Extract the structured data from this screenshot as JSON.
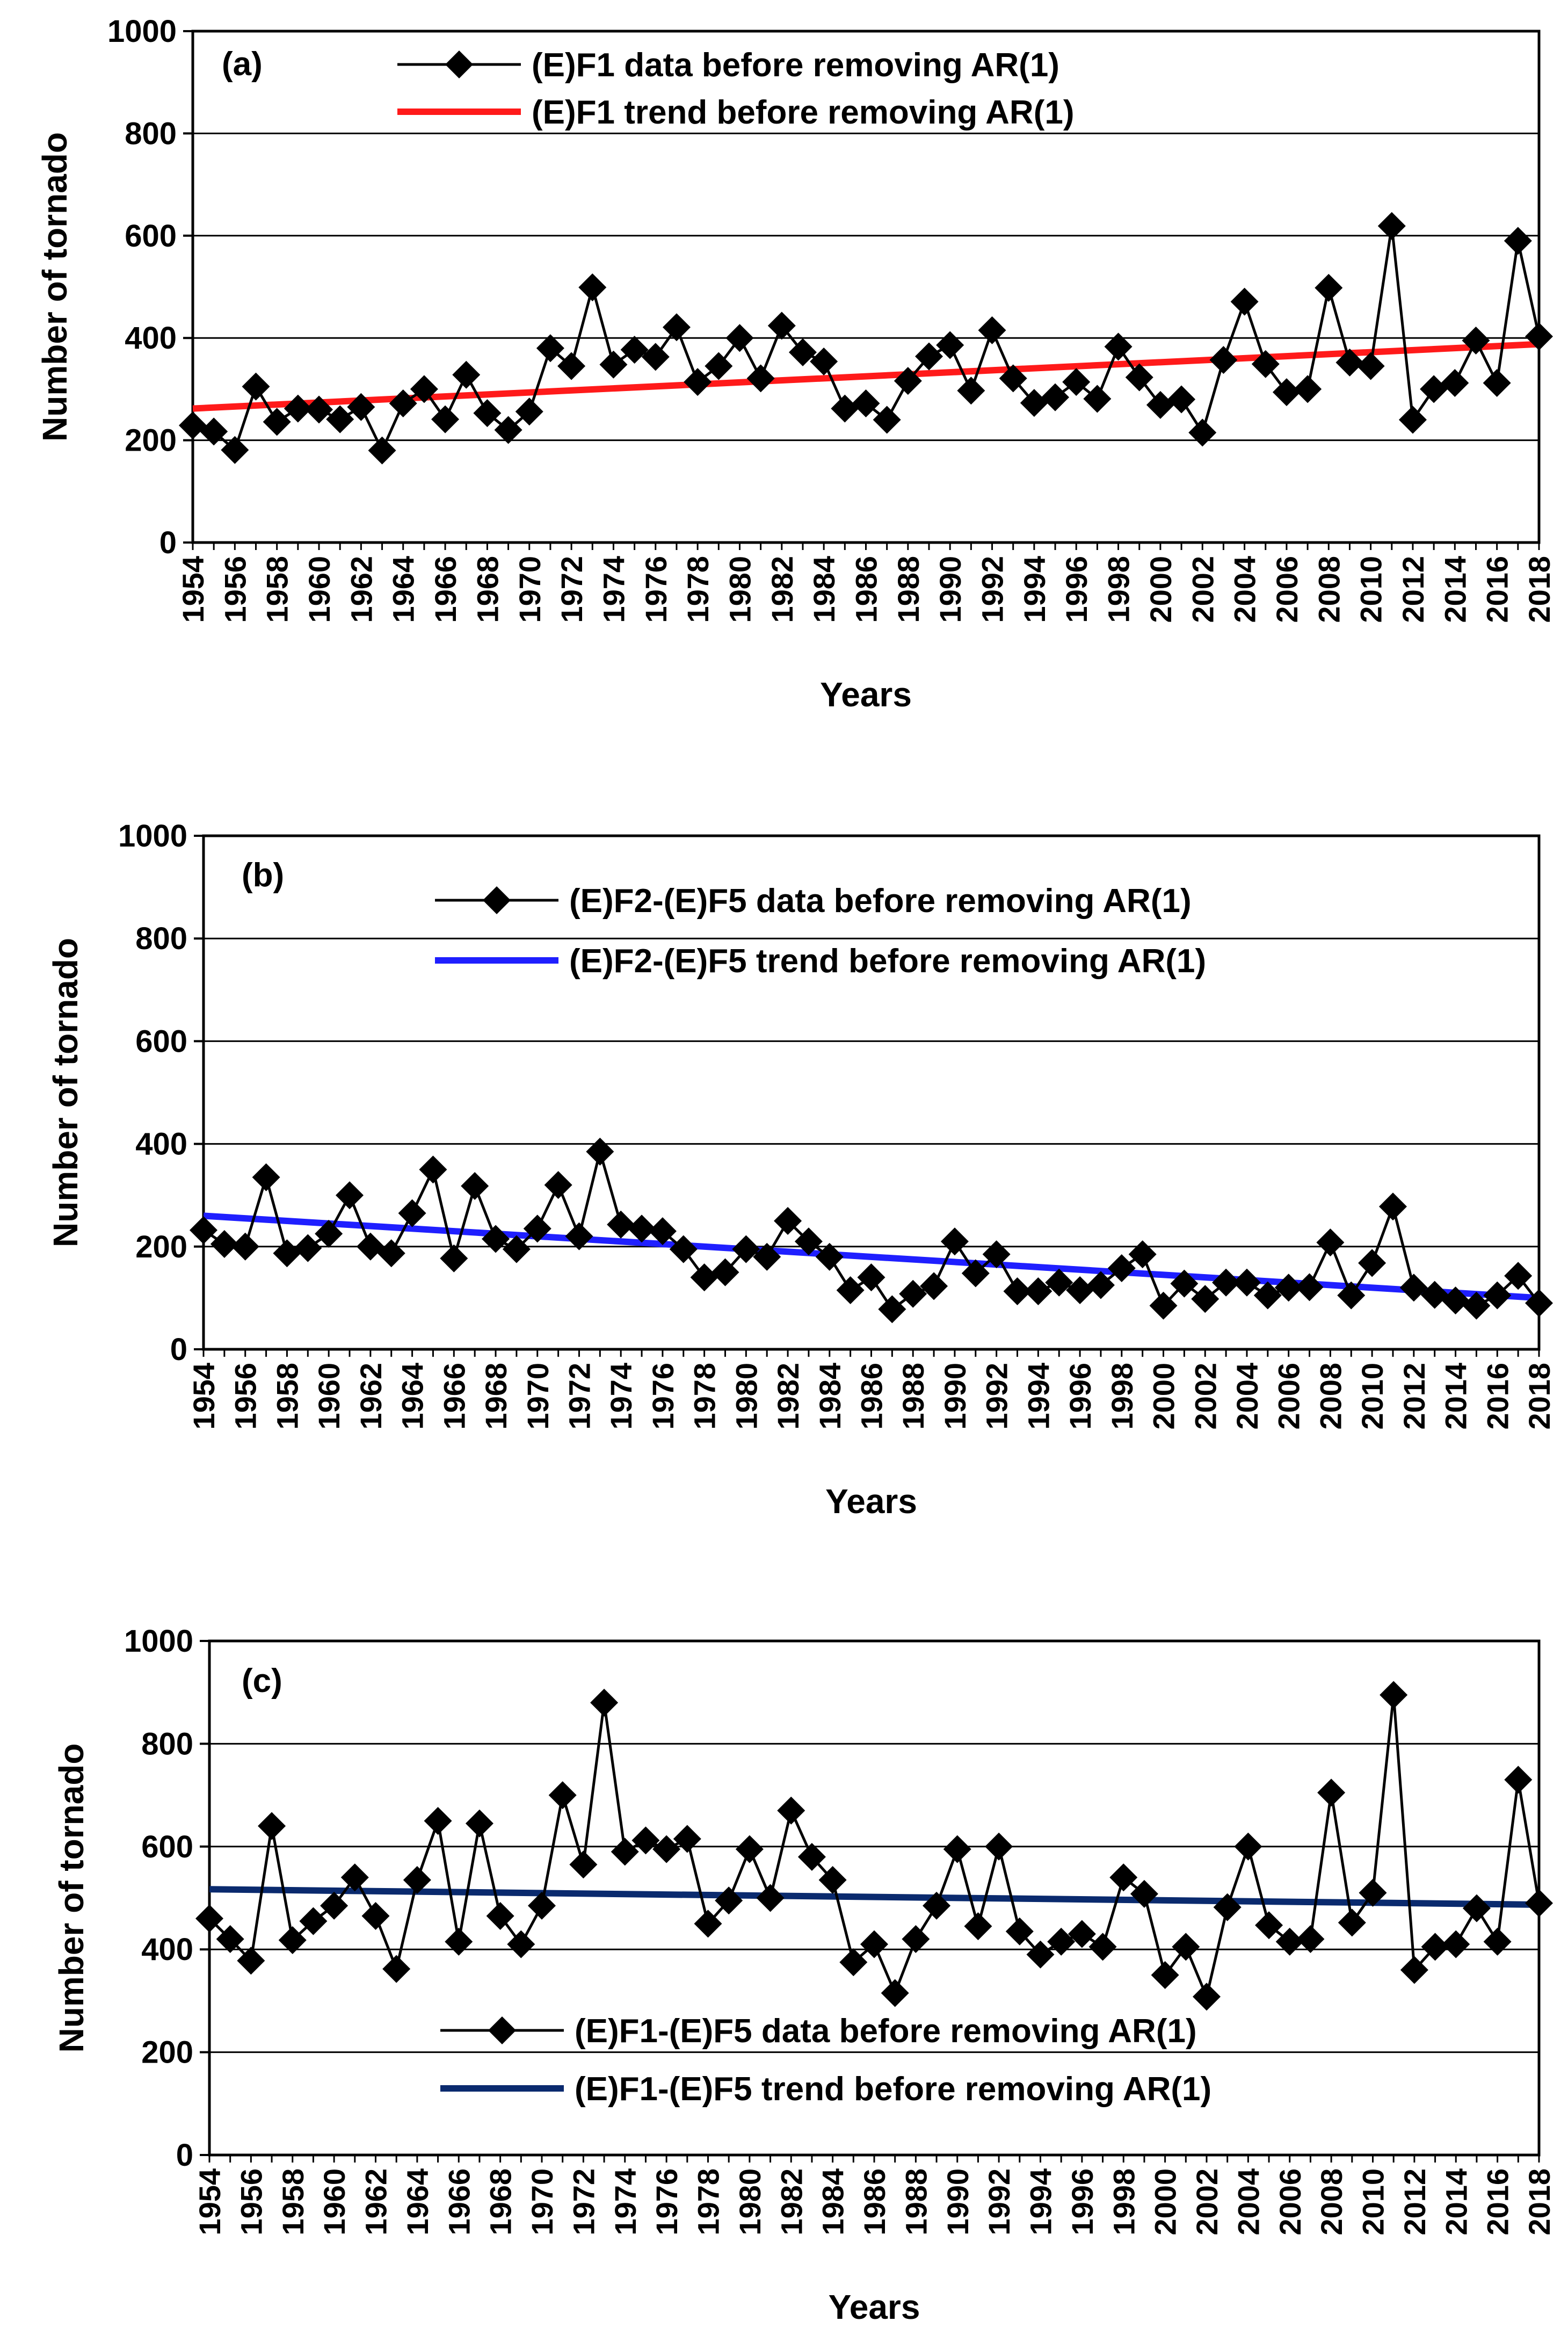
{
  "chart_data": [
    {
      "type": "line",
      "panel_label": "(a)",
      "xlabel": "Years",
      "ylabel": "Number of tornado",
      "ylim": [
        0,
        1000
      ],
      "yticks": [
        0,
        200,
        400,
        600,
        800,
        1000
      ],
      "x_tick_labels": [
        "1954",
        "1956",
        "1958",
        "1960",
        "1962",
        "1964",
        "1966",
        "1968",
        "1970",
        "1972",
        "1974",
        "1976",
        "1978",
        "1980",
        "1982",
        "1984",
        "1986",
        "1988",
        "1990",
        "1992",
        "1994",
        "1996",
        "1998",
        "2000",
        "2002",
        "2004",
        "2006",
        "2008",
        "2010",
        "2012",
        "2014",
        "2016",
        "2018"
      ],
      "grid": "horizontal",
      "legend_position": "top-center",
      "x_start": 1954,
      "x_end": 2018,
      "data_series": {
        "name": "(E)F1 data before removing AR(1)",
        "color": "#000000",
        "values": [
          229,
          217,
          181,
          305,
          236,
          262,
          260,
          241,
          265,
          180,
          272,
          300,
          241,
          328,
          253,
          220,
          256,
          380,
          345,
          499,
          348,
          377,
          363,
          421,
          314,
          345,
          400,
          321,
          424,
          372,
          354,
          262,
          272,
          240,
          316,
          364,
          386,
          297,
          415,
          321,
          273,
          284,
          314,
          281,
          383,
          323,
          269,
          280,
          215,
          357,
          471,
          349,
          294,
          300,
          498,
          352,
          345,
          619,
          240,
          300,
          312,
          395,
          312,
          590,
          403
        ]
      },
      "trend_series": {
        "name": "(E)F1 trend before removing AR(1)",
        "color": "#ff1a1a",
        "start": 262,
        "end": 388
      }
    },
    {
      "type": "line",
      "panel_label": "(b)",
      "xlabel": "Years",
      "ylabel": "Number of tornado",
      "ylim": [
        0,
        1000
      ],
      "yticks": [
        0,
        200,
        400,
        600,
        800,
        1000
      ],
      "x_tick_labels": [
        "1954",
        "1956",
        "1958",
        "1960",
        "1962",
        "1964",
        "1966",
        "1968",
        "1970",
        "1972",
        "1974",
        "1976",
        "1978",
        "1980",
        "1982",
        "1984",
        "1986",
        "1988",
        "1990",
        "1992",
        "1994",
        "1996",
        "1998",
        "2000",
        "2002",
        "2004",
        "2006",
        "2008",
        "2010",
        "2012",
        "2014",
        "2016",
        "2018"
      ],
      "grid": "horizontal",
      "legend_position": "top-center",
      "x_start": 1954,
      "x_end": 2018,
      "data_series": {
        "name": "(E)F2-(E)F5 data before removing AR(1)",
        "color": "#000000",
        "values": [
          232,
          205,
          200,
          335,
          187,
          197,
          225,
          300,
          200,
          187,
          265,
          350,
          177,
          318,
          215,
          195,
          235,
          320,
          220,
          385,
          243,
          235,
          230,
          195,
          140,
          150,
          195,
          180,
          250,
          210,
          180,
          115,
          140,
          78,
          108,
          123,
          210,
          148,
          185,
          113,
          113,
          130,
          115,
          125,
          158,
          185,
          85,
          128,
          98,
          130,
          130,
          105,
          120,
          121,
          208,
          105,
          168,
          278,
          120,
          106,
          95,
          85,
          105,
          143,
          90
        ]
      },
      "trend_series": {
        "name": "(E)F2-(E)F5 trend before removing AR(1)",
        "color": "#1f1fff",
        "start": 260,
        "end": 100
      }
    },
    {
      "type": "line",
      "panel_label": "(c)",
      "xlabel": "Years",
      "ylabel": "Number of tornado",
      "ylim": [
        0,
        1000
      ],
      "yticks": [
        0,
        200,
        400,
        600,
        800,
        1000
      ],
      "x_tick_labels": [
        "1954",
        "1956",
        "1958",
        "1960",
        "1962",
        "1964",
        "1966",
        "1968",
        "1970",
        "1972",
        "1974",
        "1976",
        "1978",
        "1980",
        "1982",
        "1984",
        "1986",
        "1988",
        "1990",
        "1992",
        "1994",
        "1996",
        "1998",
        "2000",
        "2002",
        "2004",
        "2006",
        "2008",
        "2010",
        "2012",
        "2014",
        "2016",
        "2018"
      ],
      "grid": "horizontal",
      "legend_position": "bottom-center",
      "x_start": 1954,
      "x_end": 2018,
      "data_series": {
        "name": "(E)F1-(E)F5 data before removing AR(1)",
        "color": "#000000",
        "values": [
          460,
          420,
          378,
          640,
          418,
          455,
          485,
          540,
          465,
          362,
          535,
          650,
          415,
          645,
          465,
          410,
          485,
          700,
          565,
          880,
          590,
          612,
          595,
          615,
          450,
          495,
          595,
          500,
          670,
          580,
          535,
          375,
          410,
          315,
          420,
          485,
          595,
          445,
          600,
          435,
          390,
          415,
          430,
          405,
          540,
          508,
          350,
          405,
          308,
          482,
          600,
          447,
          415,
          420,
          705,
          452,
          510,
          895,
          360,
          405,
          410,
          480,
          415,
          730,
          490
        ]
      },
      "trend_series": {
        "name": "(E)F1-(E)F5 trend before removing AR(1)",
        "color": "#0a2a6e",
        "start": 517,
        "end": 487
      }
    }
  ]
}
